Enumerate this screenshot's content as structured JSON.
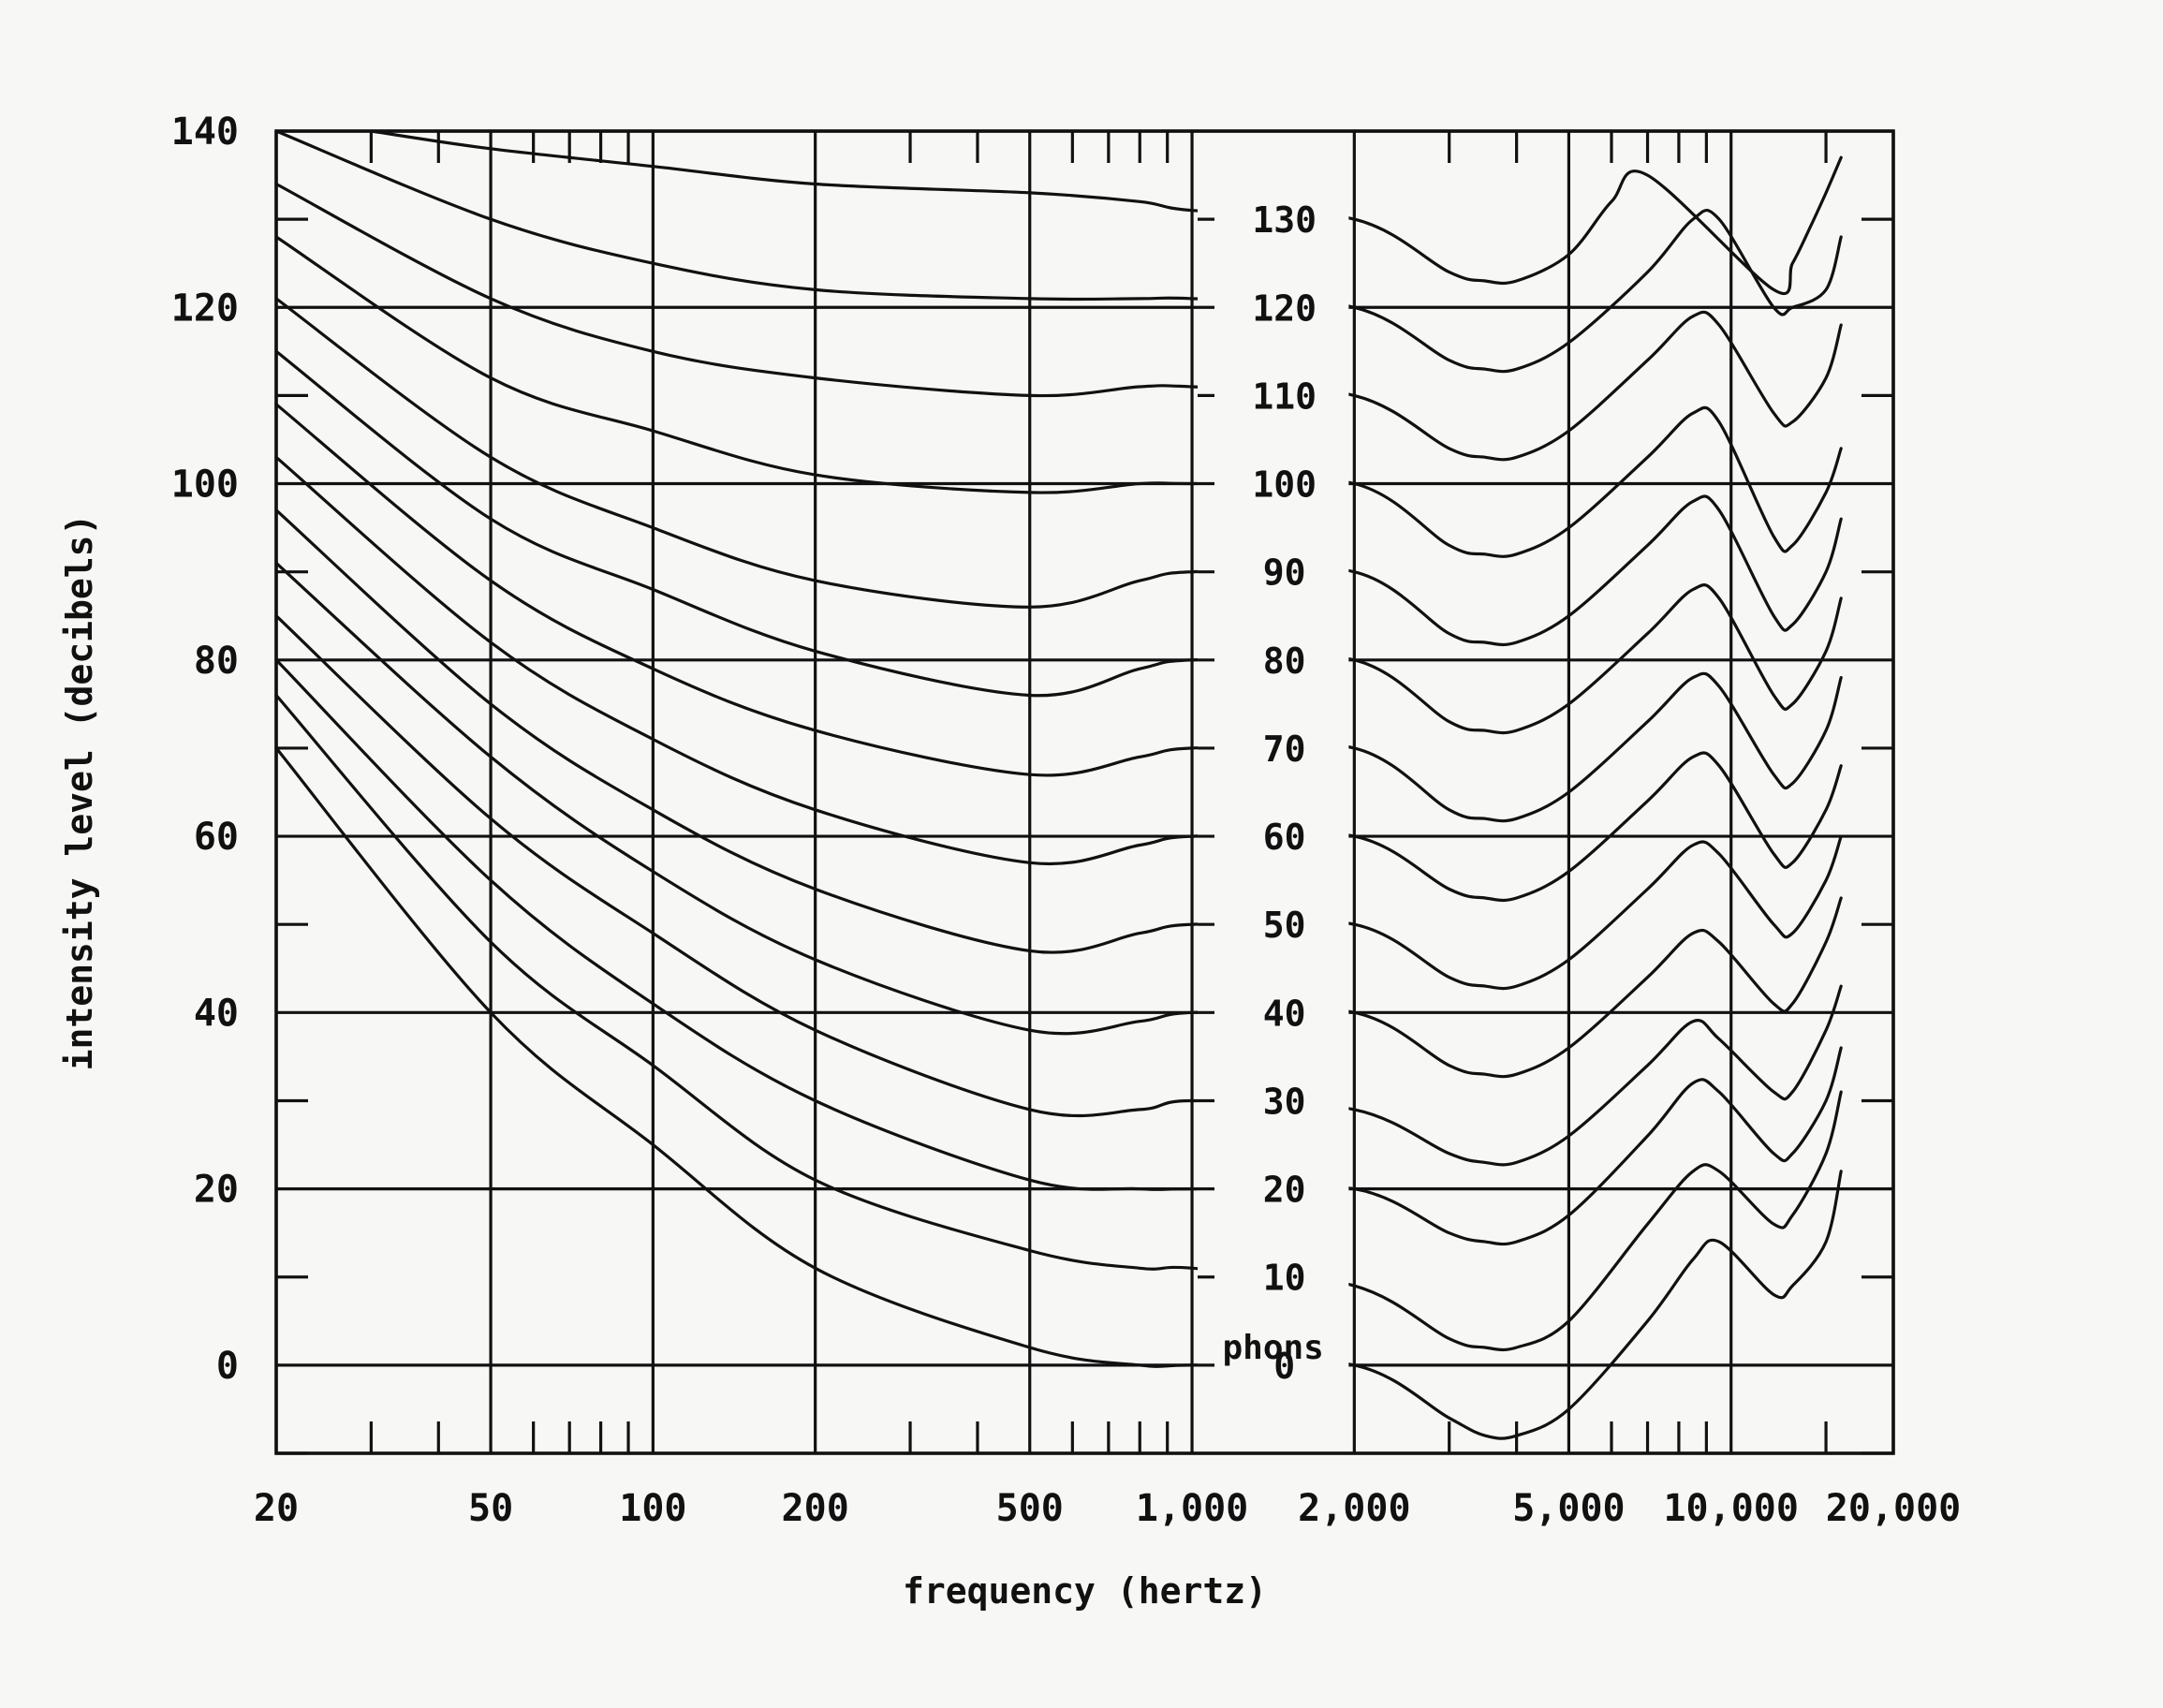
{
  "chart_data": {
    "type": "line",
    "title": "",
    "xlabel": "frequency (hertz)",
    "ylabel": "intensity level (decibels)",
    "x_scale": "log",
    "xlim": [
      20,
      20000
    ],
    "ylim": [
      -10,
      140
    ],
    "grid": true,
    "x_ticks": [
      {
        "value": 20,
        "label": "20"
      },
      {
        "value": 50,
        "label": "50"
      },
      {
        "value": 100,
        "label": "100"
      },
      {
        "value": 200,
        "label": "200"
      },
      {
        "value": 500,
        "label": "500"
      },
      {
        "value": 1000,
        "label": "1,000"
      },
      {
        "value": 2000,
        "label": "2,000"
      },
      {
        "value": 5000,
        "label": "5,000"
      },
      {
        "value": 10000,
        "label": "10,000"
      },
      {
        "value": 20000,
        "label": "20,000"
      }
    ],
    "y_ticks": [
      {
        "value": 0,
        "label": "0"
      },
      {
        "value": 20,
        "label": "20"
      },
      {
        "value": 40,
        "label": "40"
      },
      {
        "value": 60,
        "label": "60"
      },
      {
        "value": 80,
        "label": "80"
      },
      {
        "value": 100,
        "label": "100"
      },
      {
        "value": 120,
        "label": "120"
      },
      {
        "value": 140,
        "label": "140"
      }
    ],
    "unit_label": "phons",
    "series": [
      {
        "name": "0",
        "x": [
          20,
          50,
          100,
          200,
          500,
          800,
          1000,
          2000,
          3000,
          3500,
          4000,
          5000,
          7000,
          8500,
          9500,
          12000,
          13000,
          15000,
          16000
        ],
        "values": [
          70,
          40,
          25,
          11,
          2,
          0,
          0,
          0,
          -6,
          -8,
          -8,
          -5,
          5,
          12,
          14,
          8,
          9,
          14,
          22
        ]
      },
      {
        "name": "10",
        "x": [
          20,
          50,
          100,
          200,
          500,
          800,
          1000,
          2000,
          3000,
          3500,
          4000,
          5000,
          7000,
          8500,
          9500,
          12000,
          13000,
          15000,
          16000
        ],
        "values": [
          76,
          48,
          34,
          21,
          13,
          11,
          11,
          9,
          3,
          2,
          2,
          5,
          16,
          22,
          22,
          16,
          17,
          24,
          31
        ]
      },
      {
        "name": "20",
        "x": [
          20,
          50,
          100,
          200,
          500,
          800,
          1000,
          2000,
          3000,
          3500,
          4000,
          5000,
          7000,
          8500,
          9500,
          12000,
          13000,
          15000,
          16000
        ],
        "values": [
          80,
          55,
          41,
          30,
          21,
          20,
          20,
          20,
          15,
          14,
          14,
          17,
          26,
          32,
          31,
          24,
          24,
          30,
          36
        ]
      },
      {
        "name": "30",
        "x": [
          20,
          50,
          100,
          200,
          500,
          800,
          1000,
          2000,
          3000,
          3500,
          4000,
          5000,
          7000,
          8500,
          9500,
          12000,
          13000,
          15000,
          16000
        ],
        "values": [
          85,
          62,
          49,
          38,
          29,
          29,
          30,
          29,
          24,
          23,
          23,
          26,
          34,
          39,
          37,
          31,
          31,
          38,
          43
        ]
      },
      {
        "name": "40",
        "x": [
          20,
          50,
          100,
          200,
          500,
          800,
          1000,
          2000,
          3000,
          3500,
          4000,
          5000,
          7000,
          8500,
          9500,
          12000,
          13000,
          15000,
          16000
        ],
        "values": [
          91,
          69,
          56,
          46,
          38,
          39,
          40,
          40,
          34,
          33,
          33,
          36,
          44,
          49,
          48,
          41,
          41,
          48,
          53
        ]
      },
      {
        "name": "50",
        "x": [
          20,
          50,
          100,
          200,
          500,
          800,
          1000,
          2000,
          3000,
          3500,
          4000,
          5000,
          7000,
          8500,
          9500,
          12000,
          13000,
          15000,
          16000
        ],
        "values": [
          97,
          75,
          63,
          54,
          47,
          49,
          50,
          50,
          44,
          43,
          43,
          46,
          54,
          59,
          58,
          50,
          49,
          55,
          60
        ]
      },
      {
        "name": "60",
        "x": [
          20,
          50,
          100,
          200,
          500,
          800,
          1000,
          2000,
          3000,
          3500,
          4000,
          5000,
          7000,
          8500,
          9500,
          12000,
          13000,
          15000,
          16000
        ],
        "values": [
          103,
          82,
          71,
          63,
          57,
          59,
          60,
          60,
          54,
          53,
          53,
          56,
          64,
          69,
          68,
          58,
          57,
          63,
          68
        ]
      },
      {
        "name": "70",
        "x": [
          20,
          50,
          100,
          200,
          500,
          800,
          1000,
          2000,
          3000,
          3500,
          4000,
          5000,
          7000,
          8500,
          9500,
          12000,
          13000,
          15000,
          16000
        ],
        "values": [
          109,
          89,
          79,
          72,
          67,
          69,
          70,
          70,
          63,
          62,
          62,
          65,
          73,
          78,
          77,
          67,
          66,
          72,
          78
        ]
      },
      {
        "name": "80",
        "x": [
          20,
          50,
          100,
          200,
          500,
          800,
          1000,
          2000,
          3000,
          3500,
          4000,
          5000,
          7000,
          8500,
          9500,
          12000,
          13000,
          15000,
          16000
        ],
        "values": [
          115,
          96,
          88,
          81,
          76,
          79,
          80,
          80,
          73,
          72,
          72,
          75,
          83,
          88,
          87,
          76,
          75,
          81,
          87
        ]
      },
      {
        "name": "90",
        "x": [
          20,
          50,
          100,
          200,
          500,
          800,
          1000,
          2000,
          3000,
          3500,
          4000,
          5000,
          7000,
          8500,
          9500,
          12000,
          13000,
          15000,
          16000
        ],
        "values": [
          121,
          103,
          95,
          89,
          86,
          89,
          90,
          90,
          83,
          82,
          82,
          85,
          93,
          98,
          97,
          85,
          84,
          90,
          96
        ]
      },
      {
        "name": "100",
        "x": [
          20,
          50,
          100,
          200,
          500,
          800,
          1000,
          2000,
          3000,
          3500,
          4000,
          5000,
          7000,
          8500,
          9500,
          12000,
          13000,
          15000,
          16000
        ],
        "values": [
          128,
          112,
          106,
          101,
          99,
          100,
          100,
          100,
          93,
          92,
          92,
          95,
          103,
          108,
          107,
          94,
          93,
          99,
          104
        ]
      },
      {
        "name": "110",
        "x": [
          20,
          50,
          100,
          200,
          500,
          800,
          1000,
          2000,
          3000,
          3500,
          4000,
          5000,
          7000,
          8500,
          9500,
          12000,
          13000,
          15000,
          16000
        ],
        "values": [
          134,
          121,
          115,
          112,
          110,
          111,
          111,
          110,
          104,
          103,
          103,
          106,
          114,
          119,
          118,
          108,
          107,
          112,
          118
        ]
      },
      {
        "name": "120",
        "x": [
          20,
          50,
          100,
          200,
          500,
          800,
          1000,
          2000,
          3000,
          3500,
          4000,
          5000,
          7000,
          8500,
          9500,
          12000,
          13000,
          15000,
          16000
        ],
        "values": [
          140,
          130,
          125,
          122,
          121,
          121,
          121,
          120,
          114,
          113,
          113,
          116,
          124,
          130,
          130,
          120,
          120,
          122,
          128
        ]
      },
      {
        "name": "130",
        "x": [
          30,
          50,
          100,
          200,
          500,
          800,
          1000,
          2000,
          3000,
          3500,
          4000,
          5000,
          6000,
          7000,
          12000,
          13000,
          14000,
          15000,
          16000
        ],
        "values": [
          140,
          138,
          136,
          134,
          133,
          132,
          131,
          130,
          124,
          123,
          123,
          126,
          132,
          135,
          122,
          125,
          129,
          133,
          137
        ]
      }
    ]
  }
}
